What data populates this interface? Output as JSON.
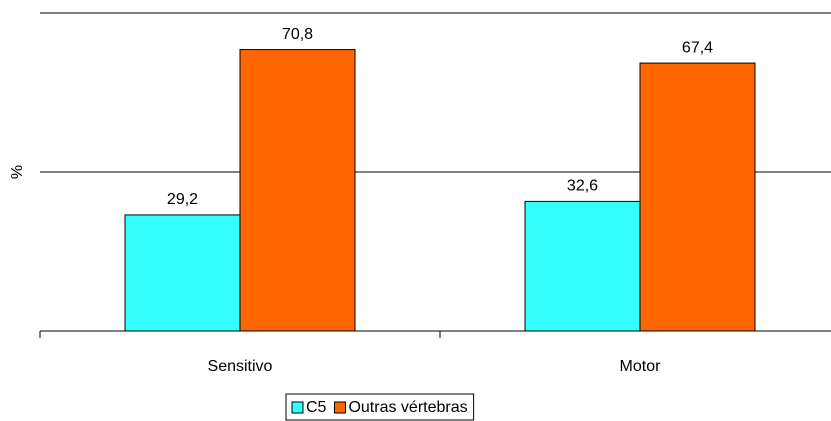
{
  "chart_data": {
    "type": "bar",
    "y_label": "%",
    "categories": [
      "Sensitivo",
      "Motor"
    ],
    "series": [
      {
        "name": "C5",
        "color": "#33ffff",
        "values": [
          29.2,
          32.6
        ],
        "value_labels": [
          "29,2",
          "32,6"
        ]
      },
      {
        "name": "Outras vértebras",
        "color": "#ff6600",
        "values": [
          70.8,
          67.4
        ],
        "value_labels": [
          "70,8",
          "67,4"
        ]
      }
    ],
    "ylim": [
      0,
      80
    ],
    "yticks": [
      0,
      40,
      80
    ],
    "grid": true,
    "legend": "bottom"
  }
}
